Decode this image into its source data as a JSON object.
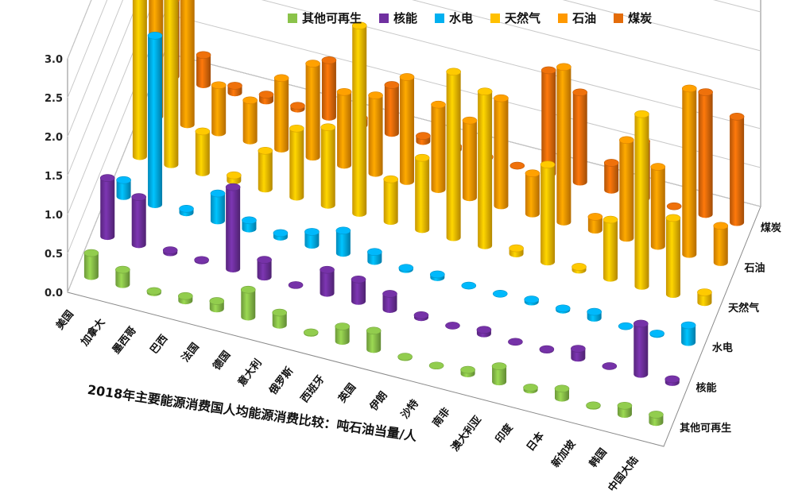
{
  "chart_data": {
    "type": "bar",
    "subtype": "3d-column",
    "title": "2018年主要能源消费国人均能源消费比较：吨石油当量/人",
    "countries": [
      "美国",
      "加拿大",
      "墨西哥",
      "巴西",
      "法国",
      "德国",
      "意大利",
      "俄罗斯",
      "西班牙",
      "英国",
      "伊朗",
      "沙特",
      "南非",
      "澳大利亚",
      "印度",
      "日本",
      "新加坡",
      "韩国",
      "中国大陆"
    ],
    "ylim": [
      0,
      3.0
    ],
    "yticks": [
      "0.0",
      "0.5",
      "1.0",
      "1.5",
      "2.0",
      "2.5",
      "3.0"
    ],
    "grid": true,
    "legend_position": "top",
    "series": [
      {
        "name": "其他可再生",
        "color": "#8bc34a",
        "values": [
          0.3,
          0.19,
          0.02,
          0.06,
          0.1,
          0.35,
          0.16,
          0.01,
          0.19,
          0.24,
          0.01,
          0.0,
          0.05,
          0.2,
          0.03,
          0.12,
          0.01,
          0.11,
          0.1
        ]
      },
      {
        "name": "核能",
        "color": "#7030a0",
        "values": [
          0.75,
          0.61,
          0.03,
          0.01,
          1.05,
          0.22,
          0.0,
          0.3,
          0.28,
          0.2,
          0.03,
          0.0,
          0.05,
          0.0,
          0.01,
          0.12,
          0.0,
          0.65,
          0.04
        ]
      },
      {
        "name": "水电",
        "color": "#00b0f0",
        "values": [
          0.21,
          2.17,
          0.05,
          0.35,
          0.11,
          0.05,
          0.17,
          0.29,
          0.12,
          0.02,
          0.04,
          0.0,
          0.0,
          0.03,
          0.02,
          0.08,
          0.0,
          0.01,
          0.22
        ]
      },
      {
        "name": "天然气",
        "color": "#ffc000",
        "values": [
          2.21,
          2.45,
          0.53,
          0.07,
          0.49,
          0.88,
          1.0,
          2.41,
          0.54,
          0.92,
          2.13,
          1.98,
          0.07,
          1.25,
          0.04,
          0.75,
          2.21,
          0.98,
          0.13
        ]
      },
      {
        "name": "石油",
        "color": "#ff9900",
        "values": [
          2.7,
          2.73,
          0.61,
          0.52,
          0.91,
          1.2,
          0.94,
          1.0,
          1.34,
          1.09,
          0.99,
          1.38,
          0.52,
          1.99,
          0.17,
          1.26,
          1.02,
          2.13,
          0.47
        ]
      },
      {
        "name": "煤炭",
        "color": "#e46c0a",
        "values": [
          0.98,
          0.38,
          0.09,
          0.08,
          0.04,
          0.73,
          0.09,
          0.62,
          0.07,
          0.04,
          0.01,
          0.0,
          1.33,
          1.15,
          0.35,
          0.73,
          0.0,
          1.57,
          1.36
        ]
      }
    ]
  }
}
